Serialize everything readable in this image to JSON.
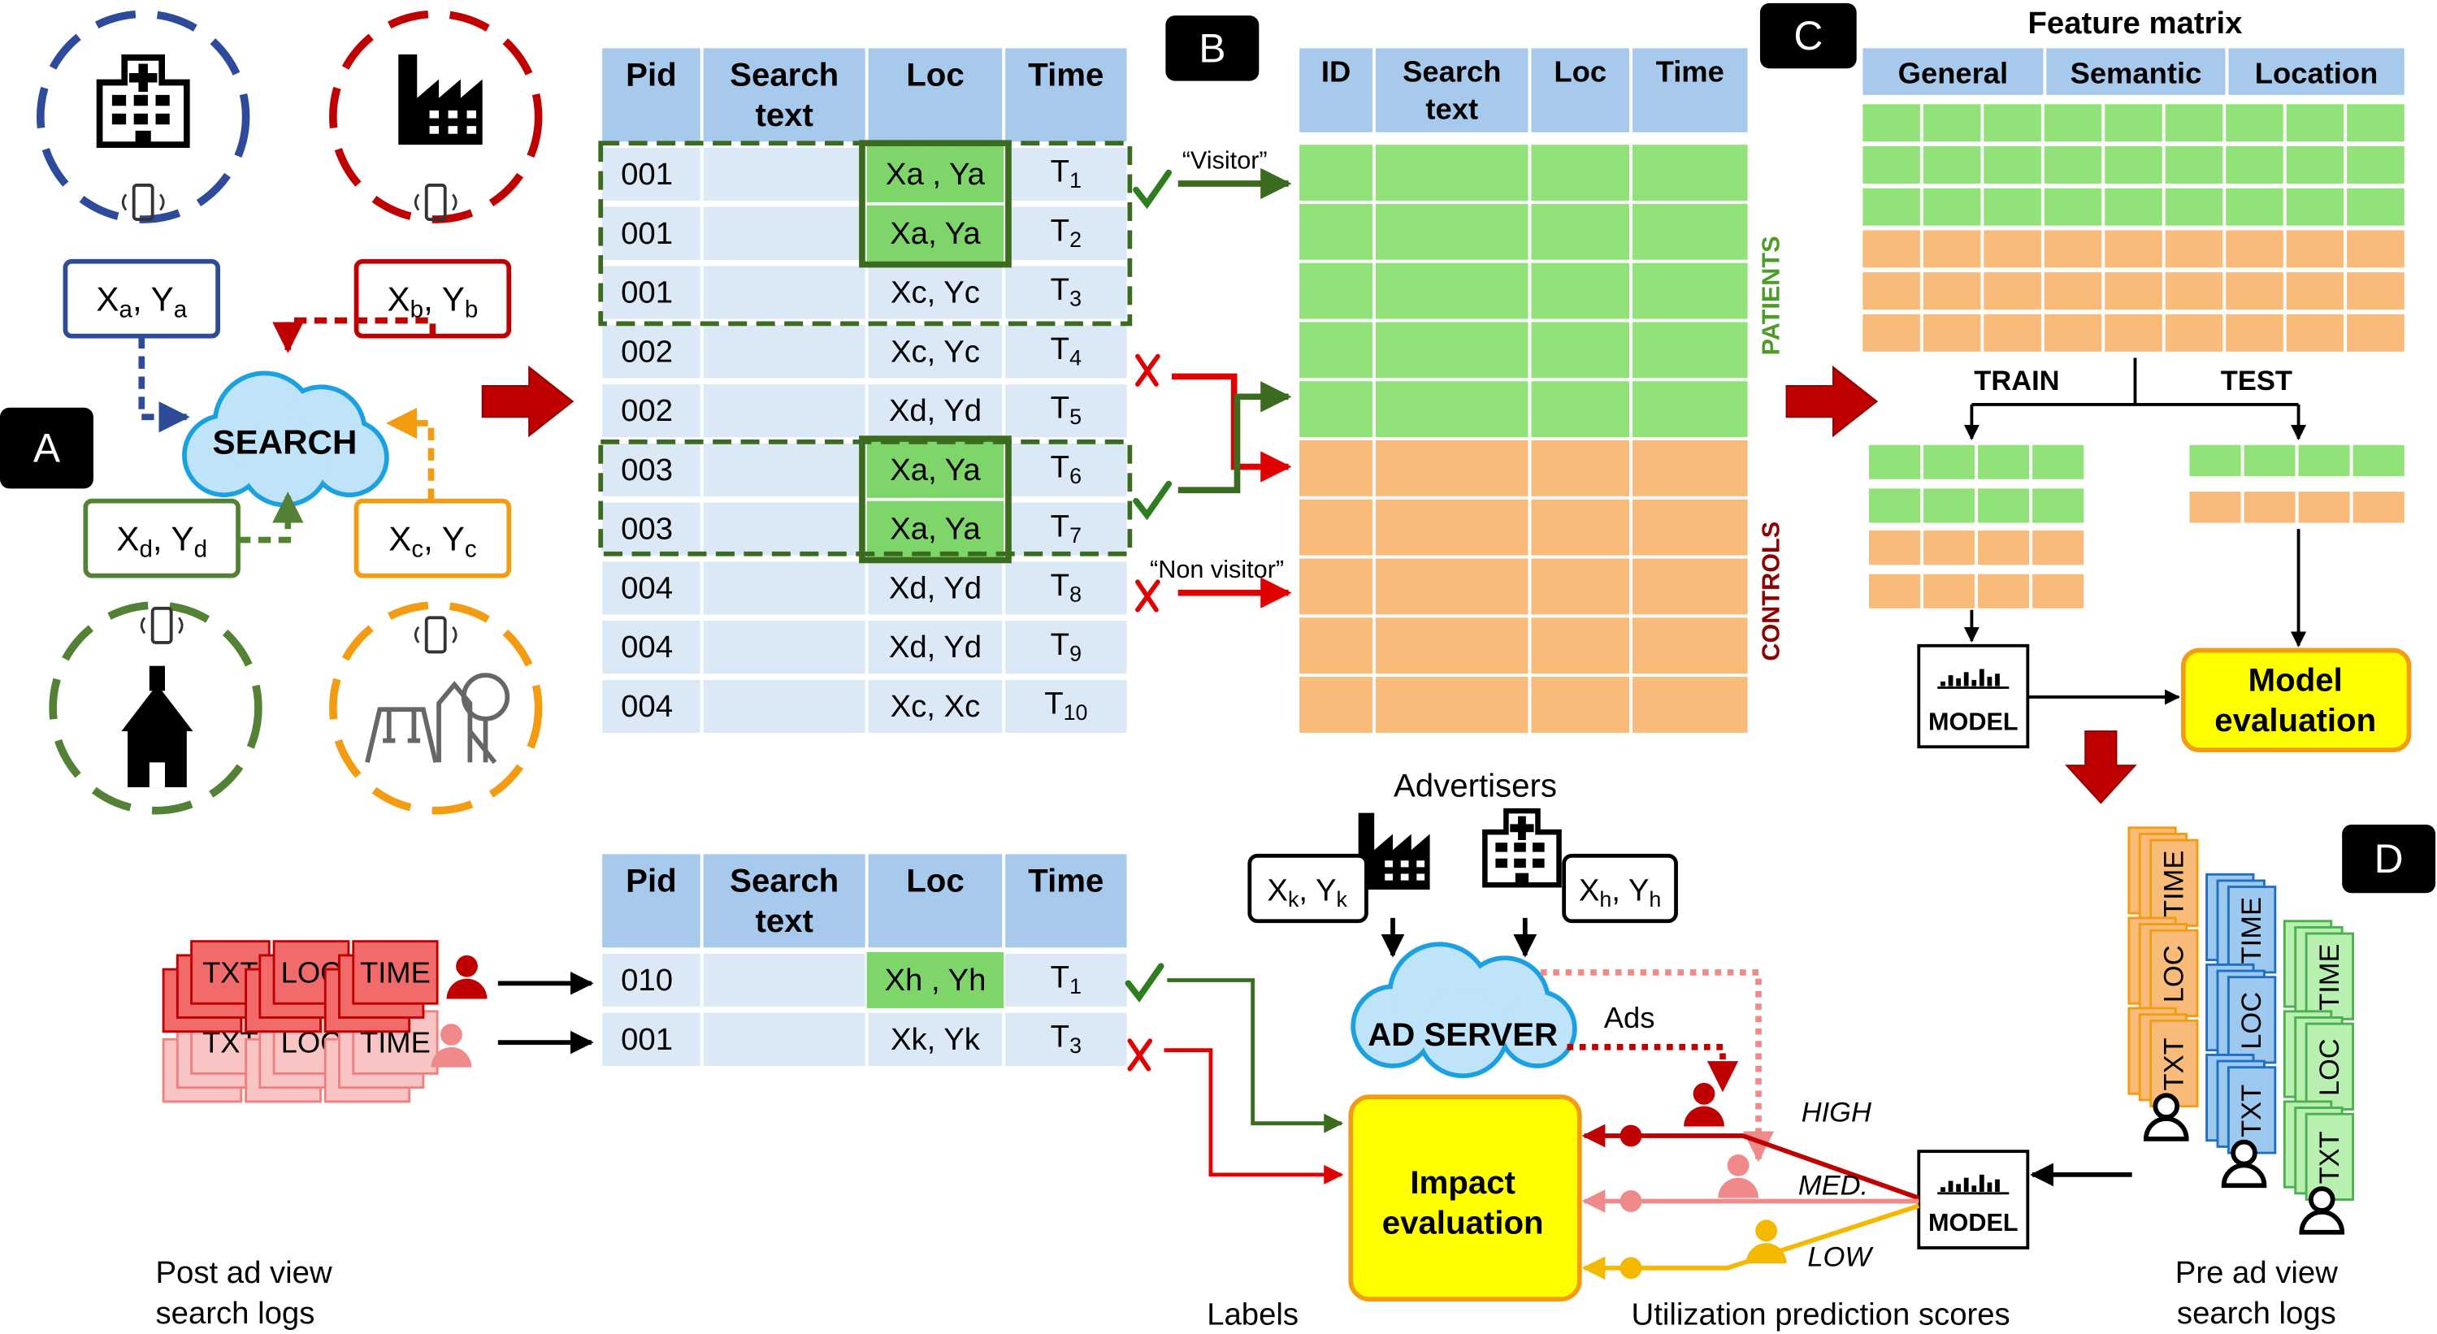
{
  "panels": {
    "a": "A",
    "b": "B",
    "c": "C",
    "d": "D"
  },
  "search_panel": {
    "search": "SEARCH",
    "coords": [
      [
        "X",
        "a",
        ", Y",
        "a"
      ],
      [
        "X",
        "b",
        ", Y",
        "b"
      ],
      [
        "X",
        "d",
        ", Y",
        "d"
      ],
      [
        "X",
        "c",
        ", Y",
        "c"
      ]
    ]
  },
  "search_log_table": {
    "header": [
      [
        "Pid"
      ],
      [
        "Search",
        "text"
      ],
      [
        "Loc"
      ],
      [
        "Time"
      ]
    ],
    "rows": [
      {
        "pid": "001",
        "loc": "Xa , Ya",
        "time": [
          "T",
          "1"
        ]
      },
      {
        "pid": "001",
        "loc": "Xa, Ya",
        "time": [
          "T",
          "2"
        ]
      },
      {
        "pid": "001",
        "loc": "Xc, Yc",
        "time": [
          "T",
          "3"
        ]
      },
      {
        "pid": "002",
        "loc": "Xc, Yc",
        "time": [
          "T",
          "4"
        ]
      },
      {
        "pid": "002",
        "loc": "Xd, Yd",
        "time": [
          "T",
          "5"
        ]
      },
      {
        "pid": "003",
        "loc": "Xa, Ya",
        "time": [
          "T",
          "6"
        ]
      },
      {
        "pid": "003",
        "loc": "Xa, Ya",
        "time": [
          "T",
          "7"
        ]
      },
      {
        "pid": "004",
        "loc": "Xd, Yd",
        "time": [
          "T",
          "8"
        ]
      },
      {
        "pid": "004",
        "loc": "Xd, Yd",
        "time": [
          "T",
          "9"
        ]
      },
      {
        "pid": "004",
        "loc": "Xc, Xc",
        "time": [
          "T",
          "10"
        ]
      }
    ]
  },
  "visitor_label": "“Visitor”",
  "non_visitor_label": "“Non visitor”",
  "label_table": {
    "header": [
      [
        "ID"
      ],
      [
        "Search",
        "text"
      ],
      [
        "Loc"
      ],
      [
        "Time"
      ]
    ],
    "patients": "PATIENTS",
    "controls": "CONTROLS"
  },
  "feature_matrix": {
    "title": "Feature matrix",
    "header": [
      "General",
      "Semantic",
      "Location"
    ],
    "train": "TRAIN",
    "test": "TEST",
    "model": "MODEL",
    "evaluation": [
      "Model",
      "evaluation"
    ]
  },
  "post_ad_table": {
    "header": [
      [
        "Pid"
      ],
      [
        "Search",
        "text"
      ],
      [
        "Loc"
      ],
      [
        "Time"
      ]
    ],
    "rows": [
      {
        "pid": "010",
        "loc": "Xh , Yh",
        "time": [
          "T",
          "1"
        ]
      },
      {
        "pid": "001",
        "loc": "Xk, Yk",
        "time": [
          "T",
          "3"
        ]
      }
    ]
  },
  "advertisers": {
    "title": "Advertisers",
    "coords": [
      [
        "X",
        "k",
        ", Y",
        "k"
      ],
      [
        "X",
        "h",
        ", Y",
        "h"
      ]
    ],
    "ad_server": "AD SERVER",
    "ads": "Ads"
  },
  "impact": {
    "label": [
      "Impact",
      "evaluation"
    ],
    "levels": [
      "HIGH",
      "MED.",
      "LOW"
    ],
    "model": "MODEL"
  },
  "log_fields": [
    "TXT",
    "LOC",
    "TIME"
  ],
  "captions": {
    "post": [
      "Post ad view",
      "search logs"
    ],
    "labels": "Labels",
    "scores": "Utilization prediction scores",
    "pre": [
      "Pre ad view",
      "search logs"
    ]
  }
}
